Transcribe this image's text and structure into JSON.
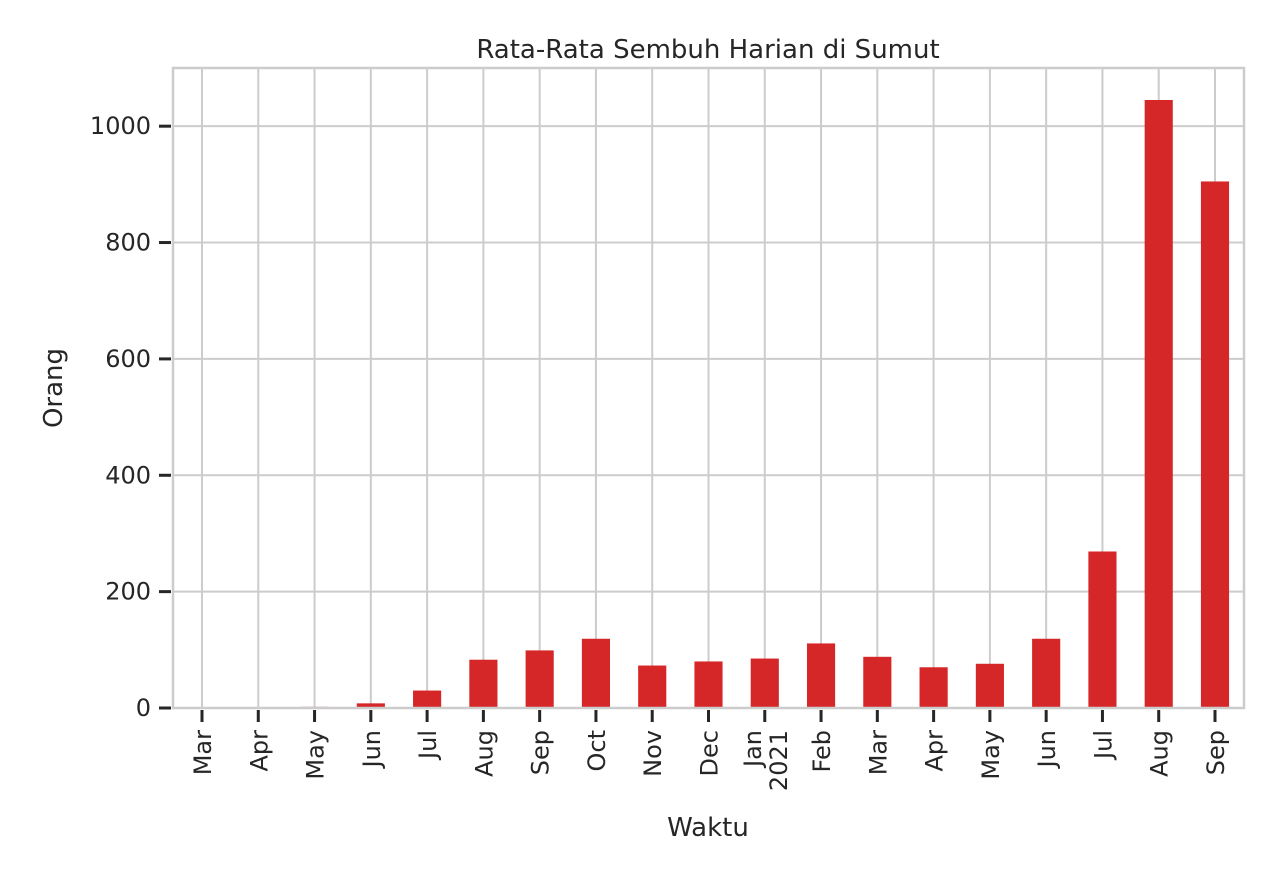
{
  "chart_data": {
    "type": "bar",
    "title": "Rata-Rata Sembuh Harian di Sumut",
    "xlabel": "Waktu",
    "ylabel": "Orang",
    "categories": [
      [
        "Mar"
      ],
      [
        "Apr"
      ],
      [
        "May"
      ],
      [
        "Jun"
      ],
      [
        "Jul"
      ],
      [
        "Aug"
      ],
      [
        "Sep"
      ],
      [
        "Oct"
      ],
      [
        "Nov"
      ],
      [
        "Dec"
      ],
      [
        "Jan",
        "2021"
      ],
      [
        "Feb"
      ],
      [
        "Mar"
      ],
      [
        "Apr"
      ],
      [
        "May"
      ],
      [
        "Jun"
      ],
      [
        "Jul"
      ],
      [
        "Aug"
      ],
      [
        "Sep"
      ]
    ],
    "values": [
      0,
      0,
      2,
      8,
      30,
      83,
      99,
      119,
      73,
      80,
      85,
      111,
      88,
      70,
      76,
      119,
      269,
      1045,
      905
    ],
    "ylim": [
      0,
      1100
    ],
    "yticks": [
      0,
      200,
      400,
      600,
      800,
      1000
    ],
    "grid": true,
    "colors": {
      "bar": "#d62728"
    }
  }
}
